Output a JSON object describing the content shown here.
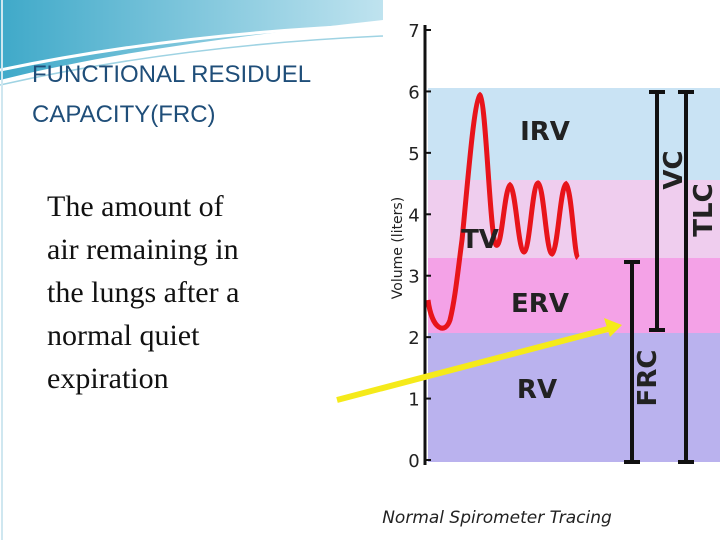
{
  "title": {
    "lines": [
      "FUNCTIONAL RESIDUEL",
      "CAPACITY(FRC)"
    ]
  },
  "body": {
    "lines": [
      "The amount of",
      "air remaining in",
      "the lungs after a",
      "normal quiet",
      "expiration"
    ]
  },
  "figure": {
    "y_axis_label": "Volume (liters)",
    "ylim": [
      0,
      7
    ],
    "yticks": [
      0,
      1,
      2,
      3,
      4,
      5,
      6,
      7
    ],
    "labels": {
      "irv": "IRV",
      "tv": "TV",
      "erv": "ERV",
      "rv": "RV",
      "frc": "FRC",
      "vc": "VC",
      "tlc": "TLC"
    },
    "caption": "Normal Spirometer Tracing"
  }
}
